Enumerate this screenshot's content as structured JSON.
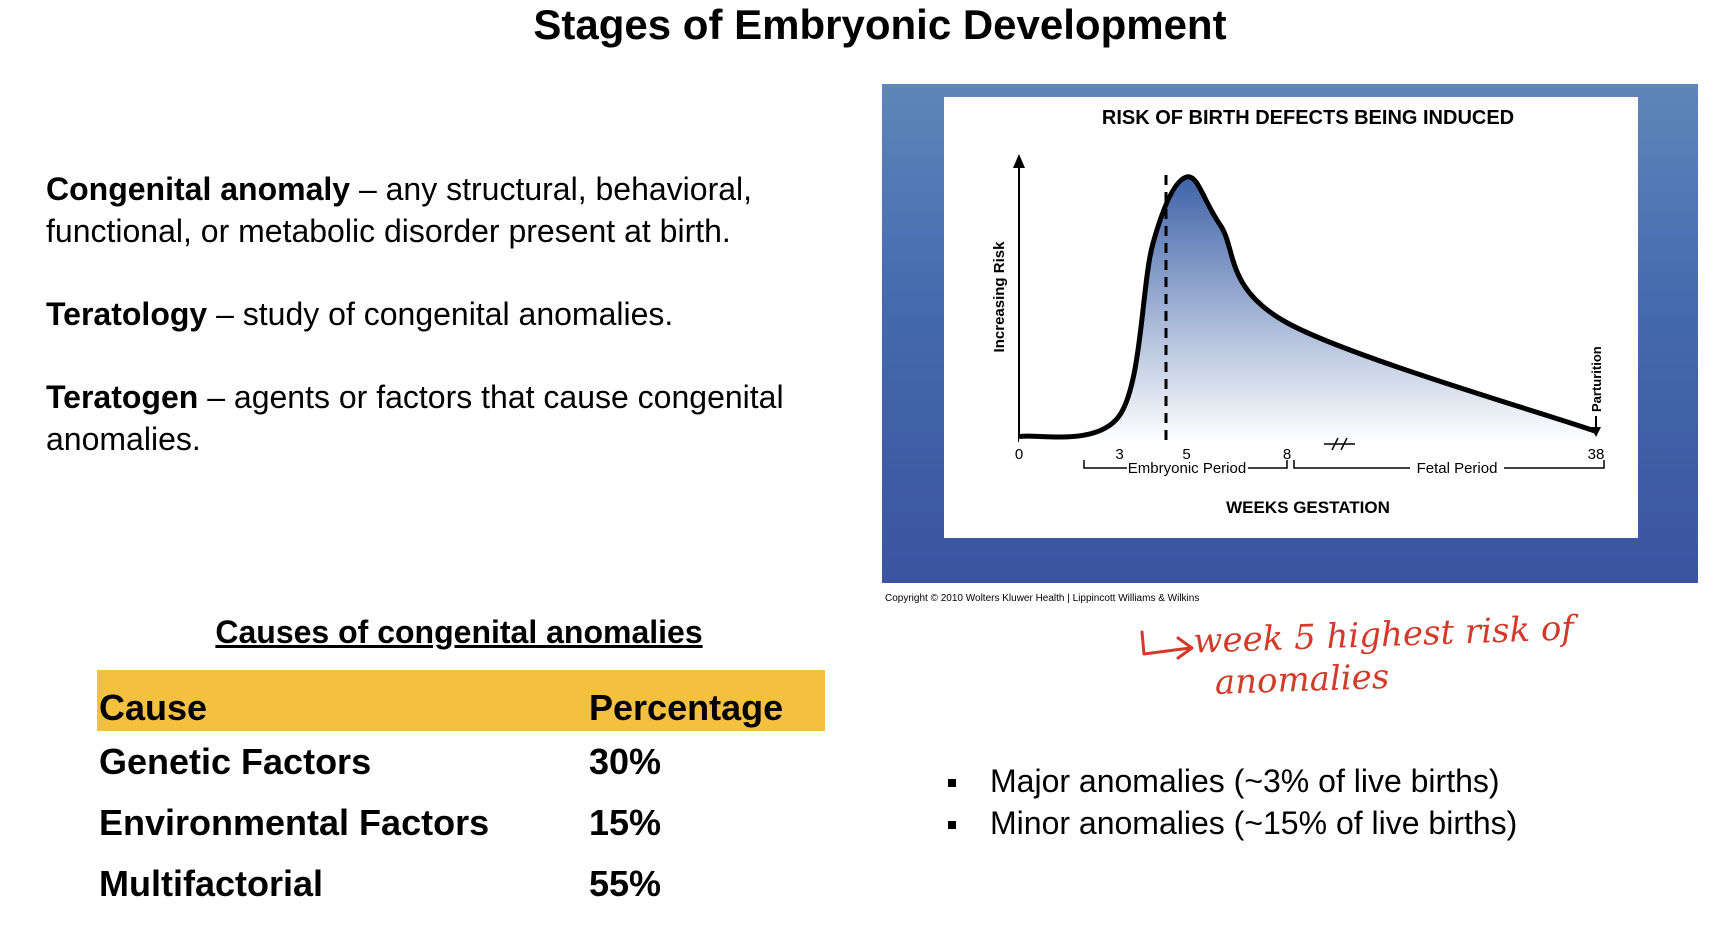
{
  "title": "Stages of Embryonic Development",
  "definitions": [
    {
      "term": "Congenital anomaly",
      "text": " – any structural, behavioral, functional, or metabolic disorder present at birth."
    },
    {
      "term": "Teratology",
      "text": " – study of congenital anomalies."
    },
    {
      "term": "Teratogen",
      "text": " – agents or factors that cause congenital anomalies."
    }
  ],
  "figure": {
    "title": "RISK OF BIRTH DEFECTS BEING INDUCED",
    "ylabel": "Increasing Risk",
    "xlabel": "WEEKS GESTATION",
    "embryonic_label": "Embryonic Period",
    "fetal_label": "Fetal Period",
    "parturition_label": "Parturition",
    "copyright": "Copyright © 2010 Wolters Kluwer Health | Lippincott Williams & Wilkins",
    "colors": {
      "frame": "#4569ae",
      "fill_top": "#3f63a8",
      "fill_bottom": "#ffffff"
    }
  },
  "chart_data": {
    "type": "area",
    "title": "RISK OF BIRTH DEFECTS BEING INDUCED",
    "xlabel": "WEEKS GESTATION",
    "ylabel": "Increasing Risk",
    "x_ticks": [
      "0",
      "3",
      "5",
      "8",
      "38"
    ],
    "peak_week": 5,
    "axis_break": "between 8 and 38",
    "points": [
      {
        "x": 0,
        "y": 0.02
      },
      {
        "x": 3,
        "y": 0.1
      },
      {
        "x": 4,
        "y": 0.75
      },
      {
        "x": 5,
        "y": 1.0
      },
      {
        "x": 6,
        "y": 0.82
      },
      {
        "x": 8,
        "y": 0.45
      },
      {
        "x": 38,
        "y": 0.04
      }
    ],
    "annotations": [
      "Embryonic Period",
      "Fetal Period",
      "Parturition"
    ]
  },
  "annotation_handwritten": {
    "line1": "week 5 highest risk of",
    "line2": "anomalies",
    "color": "#d23a2a"
  },
  "causes": {
    "title": "Causes of congenital anomalies",
    "header": [
      "Cause",
      "Percentage"
    ],
    "rows": [
      {
        "cause": "Genetic Factors",
        "percentage": "30%"
      },
      {
        "cause": "Environmental Factors",
        "percentage": "15%"
      },
      {
        "cause": "Multifactorial",
        "percentage": "55%"
      }
    ],
    "header_color": "#f4c040"
  },
  "bullets": [
    "Major anomalies (~3% of live births)",
    "Minor anomalies (~15% of live births)"
  ]
}
